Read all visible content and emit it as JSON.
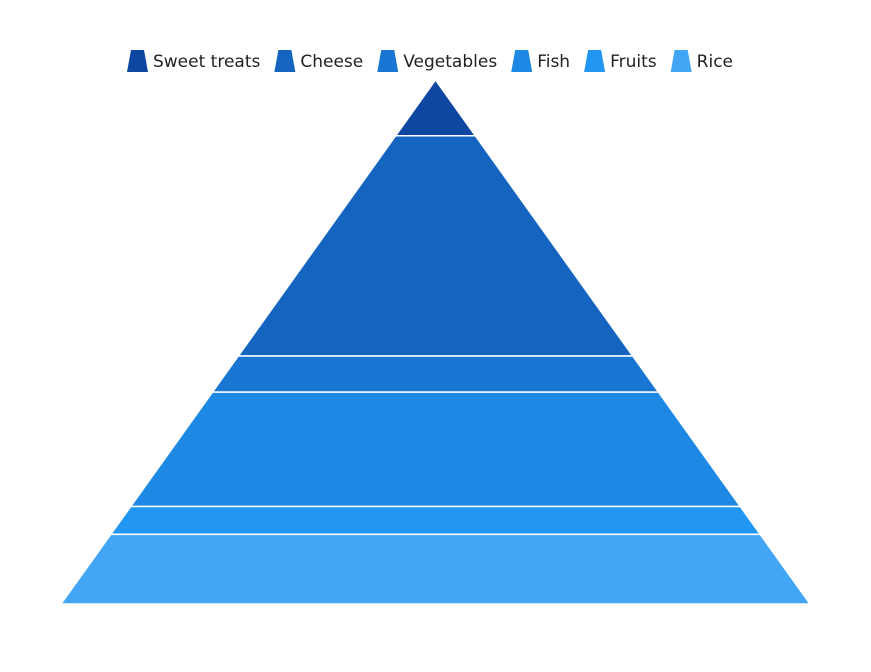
{
  "chart_data": {
    "type": "pyramid",
    "categories": [
      "Sweet treats",
      "Cheese",
      "Vegetables",
      "Fish",
      "Fruits",
      "Rice"
    ],
    "series": [
      {
        "values": [
          20,
          79,
          13,
          41,
          10,
          25
        ]
      }
    ],
    "colors": [
      "#0D47A1",
      "#1565C0",
      "#1976D2",
      "#1E88E5",
      "#2196F3",
      "#42A5F5"
    ],
    "legend": {
      "position": "top",
      "items": [
        "Sweet treats",
        "Cheese",
        "Vegetables",
        "Fish",
        "Fruits",
        "Rice"
      ]
    },
    "title": "",
    "xlabel": "",
    "ylabel": "",
    "grid": false
  }
}
